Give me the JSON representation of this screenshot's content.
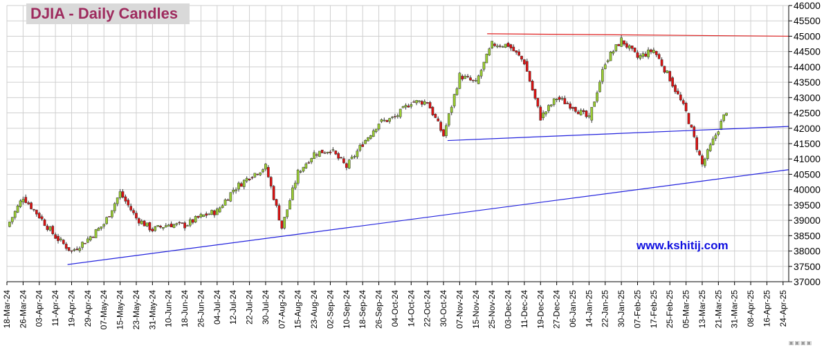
{
  "chart_data": {
    "type": "candlestick",
    "title": "DJIA - Daily Candles",
    "watermark": "www.kshitij.com",
    "ylim": [
      37000,
      46000
    ],
    "y_ticks": [
      37000,
      37500,
      38000,
      38500,
      39000,
      39500,
      40000,
      40500,
      41000,
      41500,
      42000,
      42500,
      43000,
      43500,
      44000,
      44500,
      45000,
      45500,
      46000
    ],
    "x_ticks": [
      "18-Mar-24",
      "26-Mar-24",
      "03-Apr-24",
      "11-Apr-24",
      "19-Apr-24",
      "29-Apr-24",
      "07-May-24",
      "15-May-24",
      "23-May-24",
      "31-May-24",
      "10-Jun-24",
      "18-Jun-24",
      "26-Jun-24",
      "04-Jul-24",
      "12-Jul-24",
      "22-Jul-24",
      "30-Jul-24",
      "07-Aug-24",
      "15-Aug-24",
      "23-Aug-24",
      "02-Sep-24",
      "10-Sep-24",
      "18-Sep-24",
      "26-Sep-24",
      "04-Oct-24",
      "14-Oct-24",
      "22-Oct-24",
      "30-Oct-24",
      "07-Nov-24",
      "15-Nov-24",
      "25-Nov-24",
      "03-Dec-24",
      "11-Dec-24",
      "19-Dec-24",
      "27-Dec-24",
      "06-Jan-25",
      "14-Jan-25",
      "22-Jan-25",
      "30-Jan-25",
      "07-Feb-25",
      "17-Feb-25",
      "25-Feb-25",
      "05-Mar-25",
      "13-Mar-25",
      "21-Mar-25",
      "31-Mar-25",
      "08-Apr-25",
      "16-Apr-25",
      "24-Apr-25"
    ],
    "up_color": "#9acd32",
    "down_color": "#dd1111",
    "closes": [
      {
        "date": "18-Mar-24",
        "close": 38790
      },
      {
        "date": "26-Mar-24",
        "close": 39760
      },
      {
        "date": "03-Apr-24",
        "close": 39130
      },
      {
        "date": "11-Apr-24",
        "close": 38460
      },
      {
        "date": "19-Apr-24",
        "close": 37990
      },
      {
        "date": "29-Apr-24",
        "close": 38390
      },
      {
        "date": "07-May-24",
        "close": 38880
      },
      {
        "date": "15-May-24",
        "close": 39900
      },
      {
        "date": "23-May-24",
        "close": 39070
      },
      {
        "date": "31-May-24",
        "close": 38690
      },
      {
        "date": "10-Jun-24",
        "close": 38870
      },
      {
        "date": "18-Jun-24",
        "close": 38830
      },
      {
        "date": "26-Jun-24",
        "close": 39130
      },
      {
        "date": "04-Jul-24",
        "close": 39300
      },
      {
        "date": "12-Jul-24",
        "close": 40000
      },
      {
        "date": "22-Jul-24",
        "close": 40420
      },
      {
        "date": "30-Jul-24",
        "close": 40750
      },
      {
        "date": "07-Aug-24",
        "close": 38760
      },
      {
        "date": "15-Aug-24",
        "close": 40560
      },
      {
        "date": "23-Aug-24",
        "close": 41180
      },
      {
        "date": "02-Sep-24",
        "close": 41300
      },
      {
        "date": "10-Sep-24",
        "close": 40740
      },
      {
        "date": "18-Sep-24",
        "close": 41500
      },
      {
        "date": "26-Sep-24",
        "close": 42180
      },
      {
        "date": "04-Oct-24",
        "close": 42350
      },
      {
        "date": "14-Oct-24",
        "close": 42860
      },
      {
        "date": "22-Oct-24",
        "close": 42860
      },
      {
        "date": "30-Oct-24",
        "close": 41760
      },
      {
        "date": "07-Nov-24",
        "close": 43720
      },
      {
        "date": "15-Nov-24",
        "close": 43470
      },
      {
        "date": "25-Nov-24",
        "close": 44740
      },
      {
        "date": "03-Dec-24",
        "close": 44710
      },
      {
        "date": "11-Dec-24",
        "close": 44150
      },
      {
        "date": "19-Dec-24",
        "close": 42340
      },
      {
        "date": "27-Dec-24",
        "close": 42990
      },
      {
        "date": "06-Jan-25",
        "close": 42710
      },
      {
        "date": "14-Jan-25",
        "close": 42300
      },
      {
        "date": "22-Jan-25",
        "close": 44160
      },
      {
        "date": "30-Jan-25",
        "close": 44880
      },
      {
        "date": "07-Feb-25",
        "close": 44300
      },
      {
        "date": "17-Feb-25",
        "close": 44550
      },
      {
        "date": "25-Feb-25",
        "close": 43620
      },
      {
        "date": "05-Mar-25",
        "close": 42520
      },
      {
        "date": "13-Mar-25",
        "close": 40810
      },
      {
        "date": "21-Mar-25",
        "close": 41980
      },
      {
        "date": "26-Mar-25",
        "close": 42580
      }
    ],
    "trendlines": [
      {
        "color": "#e02020",
        "from": {
          "date": "22-Nov-24",
          "value": 45080
        },
        "to": {
          "date": "end",
          "value": 45000
        }
      },
      {
        "color": "#2020dd",
        "from": {
          "date": "01-Nov-24",
          "value": 41600
        },
        "to": {
          "date": "end",
          "value": 42060
        }
      },
      {
        "color": "#2020dd",
        "from": {
          "date": "17-Apr-24",
          "value": 37560
        },
        "to": {
          "date": "end",
          "value": 40650
        }
      }
    ]
  }
}
